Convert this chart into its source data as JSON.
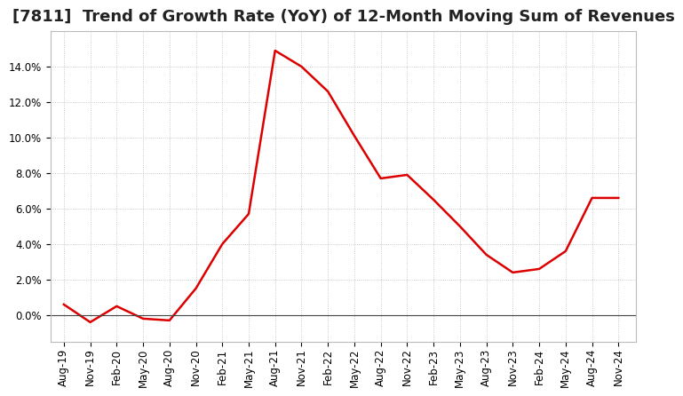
{
  "title": "[7811]  Trend of Growth Rate (YoY) of 12-Month Moving Sum of Revenues",
  "x_labels": [
    "Aug-19",
    "Nov-19",
    "Feb-20",
    "May-20",
    "Aug-20",
    "Nov-20",
    "Feb-21",
    "May-21",
    "Aug-21",
    "Nov-21",
    "Feb-22",
    "May-22",
    "Aug-22",
    "Nov-22",
    "Feb-23",
    "May-23",
    "Aug-23",
    "Nov-23",
    "Feb-24",
    "May-24",
    "Aug-24",
    "Nov-24"
  ],
  "x_values": [
    0,
    3,
    6,
    9,
    12,
    15,
    18,
    21,
    24,
    27,
    30,
    33,
    36,
    39,
    42,
    45,
    48,
    51,
    54,
    57,
    60,
    63
  ],
  "y_values": [
    0.006,
    -0.004,
    0.005,
    -0.002,
    -0.003,
    0.015,
    0.04,
    0.057,
    0.149,
    0.14,
    0.126,
    0.101,
    0.077,
    0.079,
    0.065,
    0.05,
    0.034,
    0.024,
    0.026,
    0.036,
    0.066,
    0.066
  ],
  "line_color": "#dd0000",
  "line_width": 1.8,
  "ylim": [
    -0.015,
    0.16
  ],
  "yticks": [
    0.0,
    0.02,
    0.04,
    0.06,
    0.08,
    0.1,
    0.12,
    0.14
  ],
  "background_color": "#ffffff",
  "grid_color": "#aaaaaa",
  "title_fontsize": 13,
  "tick_fontsize": 8.5
}
